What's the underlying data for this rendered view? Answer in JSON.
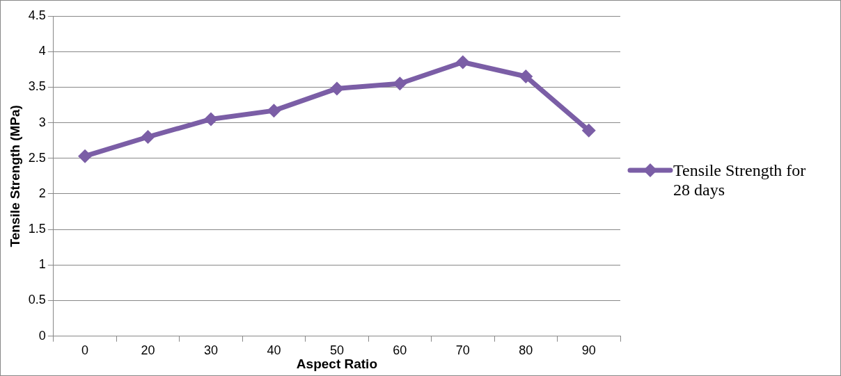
{
  "chart_data": {
    "type": "line",
    "xlabel": "Aspect Ratio",
    "ylabel": "Tensile Strength (MPa)",
    "categories": [
      "0",
      "20",
      "30",
      "40",
      "50",
      "60",
      "70",
      "80",
      "90"
    ],
    "series": [
      {
        "name": "Tensile Strength for 28 days",
        "color": "#7b5ea6",
        "values": [
          2.53,
          2.8,
          3.05,
          3.17,
          3.48,
          3.55,
          3.85,
          3.65,
          2.89
        ]
      }
    ],
    "ylim": [
      0,
      4.5
    ],
    "yticks": [
      0,
      0.5,
      1,
      1.5,
      2,
      2.5,
      3,
      3.5,
      4,
      4.5
    ],
    "grid": "y",
    "legend": "right",
    "marker": "diamond",
    "line_style": "solid"
  }
}
